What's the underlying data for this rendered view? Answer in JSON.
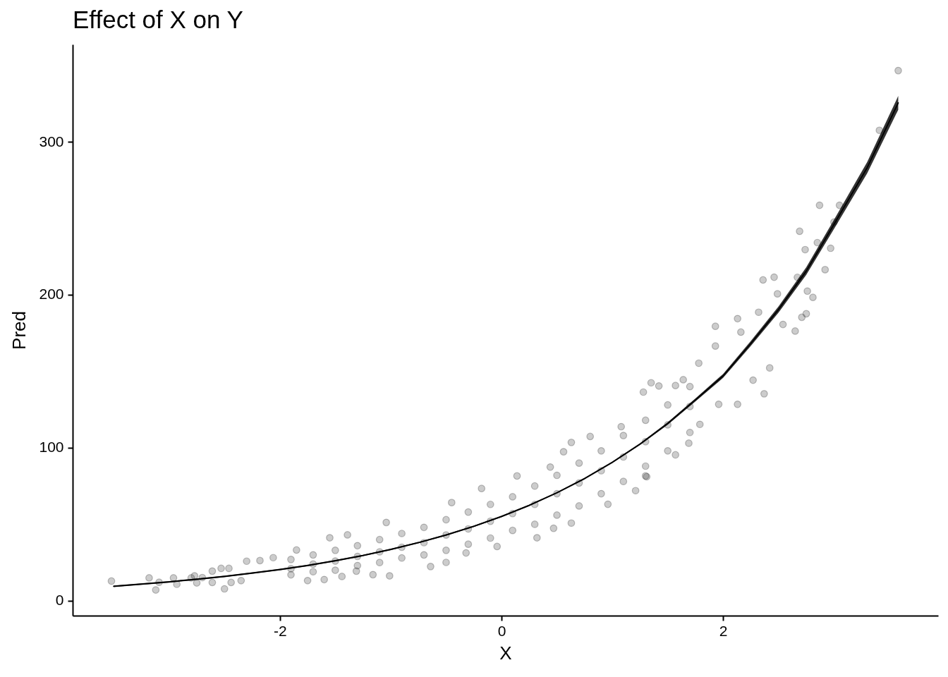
{
  "chart_data": {
    "type": "scatter",
    "title": "Effect of X on Y",
    "xlabel": "X",
    "ylabel": "Pred",
    "xlim": [
      -3.87,
      3.94
    ],
    "ylim": [
      -9.7,
      363.6
    ],
    "xticks": [
      -2,
      0,
      2
    ],
    "yticks": [
      0,
      100,
      200,
      300
    ],
    "grid": false,
    "marker": "circle",
    "series": [
      {
        "color": "#333333",
        "x": [
          -3.52,
          -3.18,
          -3.12,
          -3.09,
          -2.96,
          -2.93,
          -2.8,
          -2.77,
          -2.7,
          -2.75,
          -2.61,
          -2.61,
          -2.5,
          -2.53,
          -2.46,
          -2.44,
          -2.3,
          -2.18,
          -2.35,
          -2.06,
          -1.85,
          -1.55,
          -1.39,
          -1.75,
          -1.6,
          -1.44,
          -1.31,
          -1.04,
          -1.01,
          -1.16,
          -0.64,
          -0.5,
          -0.32,
          -0.04,
          0.32,
          0.47,
          0.63,
          0.96,
          1.21,
          1.3,
          -0.45,
          -0.18,
          0.14,
          0.44,
          0.56,
          0.63,
          0.8,
          1.08,
          1.31,
          1.57,
          1.69,
          1.79,
          1.96,
          2.13,
          2.37,
          2.27,
          2.42,
          2.65,
          2.81,
          2.75,
          1.28,
          1.35,
          1.42,
          1.57,
          1.64,
          1.78,
          1.93,
          1.93,
          2.13,
          2.16,
          2.32,
          2.49,
          2.76,
          3.58,
          3.41,
          2.87,
          3.05,
          3.0,
          2.69,
          2.74,
          2.85,
          2.97,
          2.92,
          2.67,
          2.71,
          2.54,
          2.36,
          2.46,
          -1.9,
          -1.9,
          -1.9,
          -1.7,
          -1.7,
          -1.7,
          -1.5,
          -1.5,
          -1.5,
          -1.3,
          -1.3,
          -1.3,
          -1.1,
          -1.1,
          -1.1,
          -0.9,
          -0.9,
          -0.9,
          -0.7,
          -0.7,
          -0.7,
          -0.5,
          -0.5,
          -0.5,
          -0.3,
          -0.3,
          -0.3,
          -0.1,
          -0.1,
          -0.1,
          0.1,
          0.1,
          0.1,
          0.3,
          0.3,
          0.3,
          0.5,
          0.5,
          0.5,
          0.7,
          0.7,
          0.7,
          0.9,
          0.9,
          0.9,
          1.1,
          1.1,
          1.1,
          1.3,
          1.3,
          1.3,
          1.5,
          1.5,
          1.5,
          1.7,
          1.7,
          1.7
        ],
        "values": [
          12.9,
          15.0,
          7.1,
          12.1,
          15.0,
          10.8,
          15.0,
          16.3,
          15.2,
          11.7,
          19.4,
          12.0,
          7.8,
          21.2,
          21.2,
          12.0,
          25.9,
          26.3,
          13.2,
          28.2,
          33.2,
          41.2,
          43.1,
          13.2,
          13.9,
          15.9,
          19.4,
          51.2,
          16.3,
          17.1,
          22.4,
          25.1,
          31.3,
          35.5,
          41.2,
          47.4,
          50.8,
          63.1,
          72.0,
          81.6,
          64.2,
          73.4,
          81.6,
          87.4,
          97.4,
          103.5,
          107.4,
          113.8,
          81.1,
          95.4,
          103.0,
          115.3,
          128.4,
          128.4,
          135.3,
          144.2,
          152.2,
          176.3,
          198.3,
          187.6,
          136.4,
          142.5,
          140.4,
          140.7,
          144.5,
          155.3,
          179.4,
          166.5,
          184.4,
          175.6,
          188.6,
          200.6,
          202.4,
          346.5,
          307.5,
          258.5,
          258.5,
          247.5,
          241.5,
          229.5,
          234.1,
          230.4,
          216.4,
          211.4,
          185.3,
          180.6,
          209.7,
          211.5,
          21,
          27,
          17,
          24,
          30,
          19,
          26,
          33,
          20,
          29,
          36,
          23,
          32,
          40,
          25,
          35,
          44,
          28,
          38,
          48,
          30,
          43,
          53,
          33,
          47,
          58,
          37,
          52,
          63,
          41,
          57,
          68,
          46,
          63,
          75,
          50,
          70,
          82,
          56,
          77,
          90,
          62,
          85,
          98,
          70,
          94,
          108,
          78,
          104,
          118,
          88,
          115,
          128,
          98,
          127,
          140,
          110
        ]
      },
      {
        "type": "line",
        "color": "#000000",
        "marker": "none",
        "x": [
          -3.5,
          -3.0,
          -2.75,
          -2.5,
          -2.25,
          -2.0,
          -1.75,
          -1.5,
          -1.25,
          -1.0,
          -0.75,
          -0.5,
          -0.25,
          0,
          0.25,
          0.5,
          0.75,
          1.0,
          1.25,
          1.5,
          1.75,
          2.0,
          2.25,
          2.5,
          2.75,
          3.0,
          3.3,
          3.58
        ],
        "values": [
          9.5,
          12.4,
          14.1,
          15.9,
          18.1,
          20.4,
          23.1,
          26.2,
          29.6,
          33.6,
          38.0,
          43.0,
          48.7,
          55.1,
          62.4,
          70.6,
          79.9,
          90.5,
          102.4,
          115.9,
          131.3,
          147.0,
          168.2,
          190.4,
          215.5,
          246.0,
          283.1,
          325.4
        ],
        "lower": [
          9.0,
          11.9,
          13.6,
          15.4,
          17.6,
          19.9,
          22.6,
          25.7,
          29.1,
          33.1,
          37.5,
          42.5,
          48.2,
          54.6,
          61.9,
          70.1,
          79.4,
          90.0,
          101.8,
          115.1,
          130.3,
          145.7,
          166.6,
          188.4,
          213.0,
          243.0,
          279.4,
          320.9
        ],
        "upper": [
          10.0,
          12.9,
          14.6,
          16.4,
          18.6,
          20.9,
          23.6,
          26.7,
          30.1,
          34.1,
          38.5,
          43.5,
          49.2,
          55.6,
          62.9,
          71.1,
          80.4,
          91.0,
          103.0,
          116.7,
          132.3,
          148.3,
          169.8,
          192.4,
          218.0,
          249.0,
          286.8,
          329.9
        ]
      }
    ]
  }
}
